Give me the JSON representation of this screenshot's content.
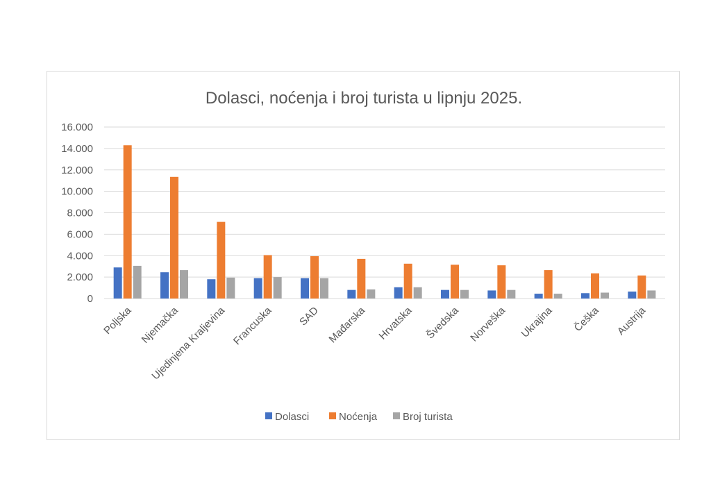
{
  "chart_data": {
    "type": "bar",
    "title": "Dolasci, noćenja i broj turista u lipnju 2025.",
    "xlabel": "",
    "ylabel": "",
    "ylim": [
      0,
      16000
    ],
    "yticks": [
      0,
      2000,
      4000,
      6000,
      8000,
      10000,
      12000,
      14000,
      16000
    ],
    "ytick_labels": [
      "0",
      "2.000",
      "4.000",
      "6.000",
      "8.000",
      "10.000",
      "12.000",
      "14.000",
      "16.000"
    ],
    "categories": [
      "Poljska",
      "Njemačka",
      "Ujedinjena Kraljevina",
      "Francuska",
      "SAD",
      "Mađarska",
      "Hrvatska",
      "Švedska",
      "Norveška",
      "Ukrajina",
      "Češka",
      "Austrija"
    ],
    "series": [
      {
        "name": "Dolasci",
        "color": "#4472c4",
        "values": [
          2900,
          2450,
          1800,
          1900,
          1900,
          800,
          1050,
          800,
          750,
          450,
          500,
          650
        ]
      },
      {
        "name": "Noćenja",
        "color": "#ed7d31",
        "values": [
          14300,
          11350,
          7150,
          4050,
          3950,
          3700,
          3250,
          3150,
          3100,
          2650,
          2350,
          2150
        ]
      },
      {
        "name": "Broj turista",
        "color": "#a5a5a5",
        "values": [
          3050,
          2650,
          1950,
          2000,
          1900,
          850,
          1050,
          800,
          800,
          450,
          550,
          750
        ]
      }
    ],
    "grid": true,
    "legend_position": "bottom"
  }
}
